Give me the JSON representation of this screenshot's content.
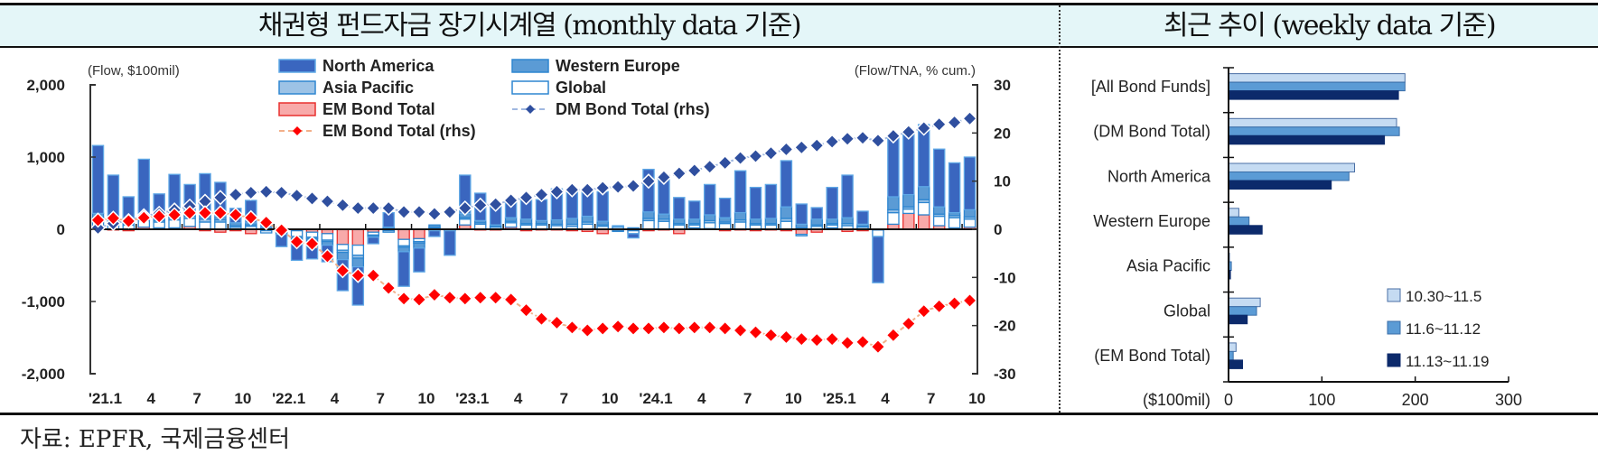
{
  "header": {
    "left_title": "채권형 펀드자금 장기시계열 (monthly data 기준)",
    "right_title": "최근 추이 (weekly data 기준)"
  },
  "source": "자료: EPFR,  국제금융센터",
  "colors": {
    "north_america": "#3a66bf",
    "western_europe": "#5b9bd5",
    "asia_pacific": "#9dc3e6",
    "global": "#ffffff",
    "global_border": "#2e86d0",
    "em_fill": "#f8aaaa",
    "em_border": "#e8302f",
    "dm_line": "#2f4f9f",
    "em_line": "#ff0000",
    "week1": "#c5dbf2",
    "week2": "#5b9bd5",
    "week3": "#0c2a6b",
    "header_bg": "#e4f6f8"
  },
  "chart_data": [
    {
      "type": "bar",
      "subtype": "stacked-bar-with-lines",
      "title": "채권형 펀드자금 장기시계열 (monthly data 기준)",
      "ylabel": "(Flow, $100mil)",
      "y2label": "(Flow/TNA, % cum.)",
      "ylim": [
        -2000,
        2000
      ],
      "y2lim": [
        -30,
        30
      ],
      "yticks": [
        "2,000",
        "1,000",
        "0",
        "-1,000",
        "-2,000"
      ],
      "yticks_values": [
        2000,
        1000,
        0,
        -1000,
        -2000
      ],
      "y2ticks": [
        "30",
        "20",
        "10",
        "0",
        "-10",
        "-20",
        "-30"
      ],
      "y2ticks_values": [
        30,
        20,
        10,
        0,
        -10,
        -20,
        -30
      ],
      "xtick_labels": [
        "'21.1",
        "4",
        "7",
        "10",
        "'22.1",
        "4",
        "7",
        "10",
        "'23.1",
        "4",
        "7",
        "10",
        "'24.1",
        "4",
        "7",
        "10",
        "'25.1",
        "4",
        "7",
        "10"
      ],
      "xtick_every": 3,
      "legend": [
        {
          "name": "North America",
          "kind": "bar",
          "key": "north_america"
        },
        {
          "name": "Western Europe",
          "kind": "bar",
          "key": "western_europe"
        },
        {
          "name": "Asia Pacific",
          "kind": "bar",
          "key": "asia_pacific"
        },
        {
          "name": "Global",
          "kind": "bar",
          "key": "global"
        },
        {
          "name": "EM Bond Total",
          "kind": "bar",
          "key": "em"
        },
        {
          "name": "DM Bond Total (rhs)",
          "kind": "line",
          "key": "dm_rhs"
        },
        {
          "name": "EM Bond Total (rhs)",
          "kind": "line",
          "key": "em_rhs"
        }
      ],
      "legend_position": "top-center",
      "x": [
        "2021-01",
        "2021-02",
        "2021-03",
        "2021-04",
        "2021-05",
        "2021-06",
        "2021-07",
        "2021-08",
        "2021-09",
        "2021-10",
        "2021-11",
        "2021-12",
        "2022-01",
        "2022-02",
        "2022-03",
        "2022-04",
        "2022-05",
        "2022-06",
        "2022-07",
        "2022-08",
        "2022-09",
        "2022-10",
        "2022-11",
        "2022-12",
        "2023-01",
        "2023-02",
        "2023-03",
        "2023-04",
        "2023-05",
        "2023-06",
        "2023-07",
        "2023-08",
        "2023-09",
        "2023-10",
        "2023-11",
        "2023-12",
        "2024-01",
        "2024-02",
        "2024-03",
        "2024-04",
        "2024-05",
        "2024-06",
        "2024-07",
        "2024-08",
        "2024-09",
        "2024-10",
        "2024-11",
        "2024-12",
        "2025-01",
        "2025-02",
        "2025-03",
        "2025-04",
        "2025-05",
        "2025-06",
        "2025-07",
        "2025-08",
        "2025-09",
        "2025-10"
      ],
      "series": [
        {
          "name": "North America",
          "key": "north_america",
          "values": [
            940,
            600,
            330,
            770,
            330,
            520,
            380,
            560,
            470,
            200,
            310,
            60,
            -170,
            -260,
            -220,
            -230,
            -430,
            -530,
            -90,
            200,
            -480,
            -330,
            -80,
            -340,
            530,
            380,
            280,
            250,
            300,
            290,
            430,
            370,
            380,
            410,
            10,
            -60,
            590,
            530,
            300,
            250,
            420,
            270,
            580,
            440,
            470,
            640,
            280,
            160,
            440,
            590,
            180,
            -640,
            820,
            860,
            860,
            800,
            690,
            730
          ]
        },
        {
          "name": "Western Europe",
          "key": "western_europe",
          "values": [
            60,
            50,
            40,
            50,
            40,
            80,
            60,
            70,
            50,
            40,
            30,
            20,
            -30,
            -50,
            -60,
            -50,
            -100,
            -120,
            -20,
            20,
            -60,
            -70,
            30,
            -10,
            60,
            30,
            20,
            50,
            60,
            40,
            60,
            80,
            80,
            50,
            -20,
            10,
            90,
            70,
            60,
            60,
            80,
            60,
            100,
            60,
            70,
            160,
            50,
            80,
            60,
            80,
            30,
            0,
            180,
            170,
            180,
            100,
            40,
            100
          ]
        },
        {
          "name": "Asia Pacific",
          "key": "asia_pacific",
          "values": [
            40,
            30,
            20,
            30,
            20,
            30,
            30,
            40,
            30,
            20,
            20,
            10,
            -10,
            -20,
            -20,
            -20,
            -30,
            -40,
            -10,
            10,
            -20,
            -20,
            10,
            0,
            20,
            20,
            10,
            20,
            20,
            20,
            20,
            30,
            30,
            20,
            10,
            10,
            30,
            30,
            20,
            20,
            30,
            20,
            30,
            20,
            20,
            40,
            20,
            20,
            20,
            30,
            10,
            0,
            40,
            30,
            40,
            30,
            30,
            30
          ]
        },
        {
          "name": "Global",
          "key": "global",
          "values": [
            110,
            70,
            60,
            90,
            80,
            110,
            110,
            100,
            100,
            30,
            40,
            -30,
            -30,
            -80,
            -70,
            -90,
            -80,
            -140,
            -40,
            -20,
            -90,
            -40,
            20,
            -10,
            80,
            70,
            30,
            60,
            60,
            60,
            50,
            40,
            70,
            40,
            30,
            -40,
            120,
            110,
            60,
            40,
            80,
            80,
            100,
            60,
            60,
            110,
            -20,
            40,
            40,
            50,
            30,
            -90,
            160,
            60,
            170,
            130,
            140,
            110
          ]
        },
        {
          "name": "EM Bond Total",
          "key": "em",
          "values": [
            10,
            -10,
            -20,
            30,
            20,
            20,
            40,
            -20,
            -40,
            -20,
            -60,
            -20,
            10,
            -20,
            -40,
            -60,
            -210,
            -220,
            -40,
            -20,
            -140,
            -130,
            -20,
            0,
            60,
            -10,
            -10,
            30,
            -20,
            -10,
            -10,
            -20,
            -30,
            -60,
            -10,
            -20,
            -20,
            -10,
            -60,
            20,
            10,
            -20,
            -10,
            -20,
            -10,
            -20,
            -70,
            -40,
            20,
            -30,
            -20,
            -10,
            70,
            220,
            200,
            50,
            20,
            30
          ]
        },
        {
          "name": "DM Bond Total (rhs)",
          "key": "dm_rhs",
          "values": [
            0.3,
            1.2,
            1.8,
            2.8,
            3.3,
            4.0,
            4.8,
            5.8,
            6.6,
            7.2,
            7.6,
            7.8,
            7.6,
            7.0,
            6.4,
            5.8,
            5.0,
            4.4,
            4.4,
            4.4,
            3.6,
            3.6,
            3.2,
            3.6,
            4.4,
            5.0,
            5.2,
            6.0,
            6.6,
            7.2,
            7.8,
            8.2,
            8.2,
            8.6,
            8.8,
            9.0,
            10.0,
            10.8,
            11.6,
            12.2,
            13.0,
            13.8,
            14.8,
            15.2,
            15.8,
            16.6,
            17.0,
            17.4,
            18.2,
            18.8,
            19.0,
            18.4,
            19.4,
            20.2,
            21.0,
            21.8,
            22.2,
            23.0
          ]
        },
        {
          "name": "EM Bond Total (rhs)",
          "key": "em_rhs",
          "values": [
            1.9,
            2.3,
            1.7,
            2.4,
            2.7,
            3.0,
            3.4,
            3.4,
            3.4,
            3.0,
            2.4,
            1.4,
            -0.2,
            -2.6,
            -3.0,
            -5.6,
            -8.6,
            -9.6,
            -9.6,
            -12.2,
            -14.4,
            -14.6,
            -13.6,
            -14.2,
            -14.4,
            -14.2,
            -14.2,
            -14.6,
            -16.8,
            -18.6,
            -19.4,
            -20.4,
            -21.0,
            -20.6,
            -20.2,
            -20.6,
            -20.6,
            -20.4,
            -20.6,
            -20.4,
            -20.4,
            -20.6,
            -21.0,
            -21.4,
            -22.0,
            -22.4,
            -22.8,
            -23.0,
            -22.8,
            -23.6,
            -23.4,
            -24.4,
            -22.0,
            -19.6,
            -17.0,
            -16.0,
            -15.4,
            -14.8
          ]
        }
      ]
    },
    {
      "type": "bar",
      "orientation": "horizontal",
      "title": "최근 추이 (weekly data 기준)",
      "xlabel": "($100mil)",
      "xlim": [
        0,
        300
      ],
      "xticks": [
        "0",
        "100",
        "200",
        "300"
      ],
      "xticks_values": [
        0,
        100,
        200,
        300
      ],
      "categories": [
        "[All Bond Funds]",
        "(DM Bond Total)",
        "North America",
        "Western Europe",
        "Asia Pacific",
        "Global",
        "(EM Bond Total)"
      ],
      "legend_position": "bottom-right",
      "series": [
        {
          "name": "10.30~11.5",
          "values": [
            189,
            180,
            135,
            11,
            1,
            34,
            8
          ]
        },
        {
          "name": "11.6~11.12",
          "values": [
            189,
            183,
            129,
            22,
            3,
            30,
            5
          ]
        },
        {
          "name": "11.13~11.19",
          "values": [
            182,
            167,
            110,
            36,
            2,
            20,
            15
          ]
        }
      ]
    }
  ]
}
